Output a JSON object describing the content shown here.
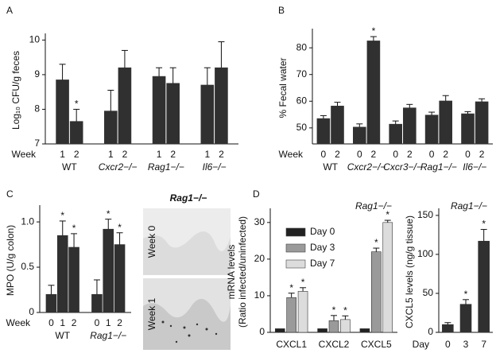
{
  "chart_data": [
    {
      "panel": "A",
      "type": "bar",
      "ylabel": "Log₁₀ CFU/g feces",
      "x_label": "Week",
      "groups": [
        "WT",
        "Cxcr2−/−",
        "Rag1−/−",
        "Il6−/−"
      ],
      "categories": [
        "1",
        "2"
      ],
      "values": [
        [
          8.85,
          7.65
        ],
        [
          7.95,
          9.2
        ],
        [
          8.95,
          8.75
        ],
        [
          8.7,
          9.2
        ]
      ],
      "errors": [
        [
          0.45,
          0.35
        ],
        [
          0.6,
          0.5
        ],
        [
          0.25,
          0.45
        ],
        [
          0.5,
          0.75
        ]
      ],
      "annotations": [
        [
          null,
          "*"
        ],
        [
          null,
          null
        ],
        [
          null,
          null
        ],
        [
          null,
          null
        ]
      ],
      "color": "#303030",
      "ylim": [
        7,
        10.1
      ],
      "yticks": [
        7,
        8,
        9,
        10
      ]
    },
    {
      "panel": "B",
      "type": "bar",
      "ylabel": "% Fecal water",
      "x_label": "Week",
      "groups": [
        "WT",
        "Cxcr2−/−",
        "Cxcr3−/−",
        "Rag1−/−",
        "Il6−/−"
      ],
      "categories": [
        "0",
        "2"
      ],
      "values": [
        [
          53.5,
          58.2
        ],
        [
          50.3,
          82.6
        ],
        [
          51.4,
          57.5
        ],
        [
          54.8,
          60.1
        ],
        [
          55.3,
          59.8
        ]
      ],
      "errors": [
        [
          1.1,
          1.4
        ],
        [
          1.2,
          1.6
        ],
        [
          1.2,
          1.3
        ],
        [
          1.1,
          2.0
        ],
        [
          0.8,
          1.1
        ]
      ],
      "annotations": [
        [
          null,
          null
        ],
        [
          null,
          "*"
        ],
        [
          null,
          null
        ],
        [
          null,
          null
        ],
        [
          null,
          null
        ]
      ],
      "color": "#303030",
      "ylim": [
        44,
        86
      ],
      "yticks": [
        50,
        60,
        70,
        80
      ]
    },
    {
      "panel": "C",
      "type": "bar",
      "ylabel": "MPO (U/g colon)",
      "x_label": "Week",
      "groups": [
        "WT",
        "Rag1−/−"
      ],
      "categories": [
        "0",
        "1",
        "2"
      ],
      "values": [
        [
          0.2,
          0.85,
          0.72
        ],
        [
          0.2,
          0.92,
          0.75
        ]
      ],
      "errors": [
        [
          0.1,
          0.16,
          0.15
        ],
        [
          0.16,
          0.11,
          0.13
        ]
      ],
      "annotations": [
        [
          null,
          "*",
          "*"
        ],
        [
          null,
          "*",
          "*"
        ]
      ],
      "color": "#303030",
      "ylim": [
        0,
        1.15
      ],
      "yticks": [
        0,
        0.5,
        {
          "value": 1,
          "label": "1.0"
        }
      ],
      "image_title": "Rag1−/−",
      "image_labels": [
        "Week 0",
        "Week 1"
      ]
    },
    {
      "panel": "D",
      "type": "bar",
      "title": "Rag1−/−",
      "ylabel": [
        "mRNA levels",
        "(Ratio infected/uninfected)"
      ],
      "categories": [
        "CXCL1",
        "CXCL2",
        "CXCL5"
      ],
      "series": [
        {
          "name": "Day 0",
          "color": "#222222",
          "values": [
            1,
            1,
            1
          ]
        },
        {
          "name": "Day 3",
          "color": "#9a9a9a",
          "values": [
            9.5,
            3.2,
            22
          ],
          "errors": [
            1.2,
            1.4,
            1.0
          ],
          "annotations": [
            "*",
            "*",
            "*"
          ]
        },
        {
          "name": "Day 7",
          "color": "#dcdcdc",
          "values": [
            11.2,
            3.5,
            30
          ],
          "errors": [
            1.0,
            1.0,
            0.6
          ],
          "annotations": [
            "*",
            "*",
            "*"
          ]
        }
      ],
      "legend": "upper left",
      "ylim": [
        0,
        33
      ],
      "yticks": [
        0,
        10,
        20,
        30
      ]
    },
    {
      "type": "bar",
      "title": "Rag1−/−",
      "ylabel": "CXCL5 levels (ng/g tissue)",
      "x_label": "Day",
      "categories": [
        "0",
        "3",
        "7"
      ],
      "values": [
        10,
        36,
        117
      ],
      "errors": [
        2.5,
        6,
        15
      ],
      "annotations": [
        null,
        "*",
        "*"
      ],
      "color": "#303030",
      "ylim": [
        0,
        155
      ],
      "yticks": [
        0,
        50,
        100,
        150
      ]
    }
  ]
}
